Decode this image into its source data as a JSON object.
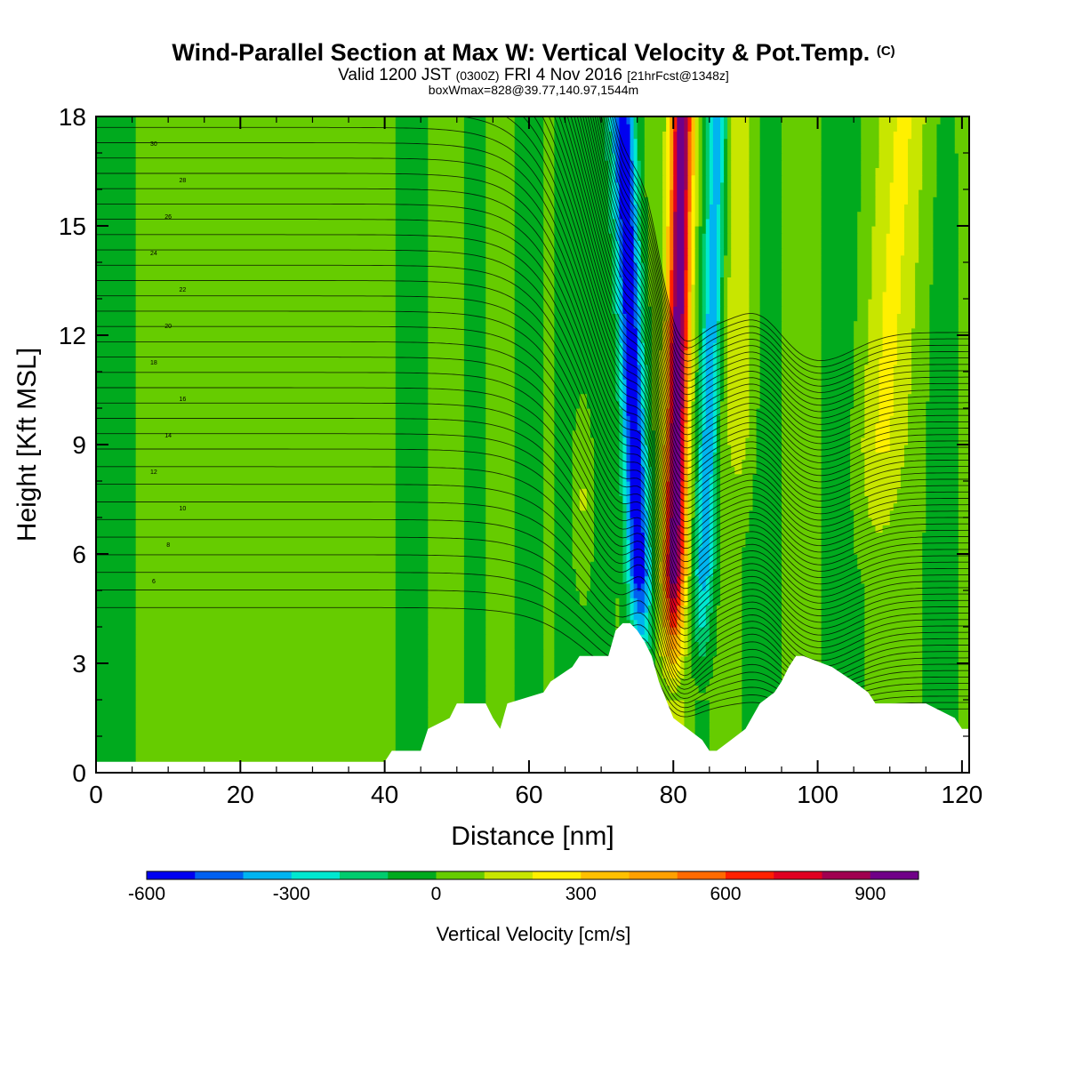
{
  "header": {
    "title_main": "Wind-Parallel Section at Max W: Vertical Velocity & Pot.Temp.",
    "title_mark": "(C)",
    "valid_a": "Valid 1200 JST ",
    "valid_b": "(0300Z)",
    "valid_c": " FRI 4 Nov 2016 ",
    "valid_d": "[21hrFcst@1348z]",
    "info": "boxWmax=828@39.77,140.97,1544m"
  },
  "chart_data": {
    "type": "heatmap",
    "title": "Wind-Parallel Section at Max W: Vertical Velocity & Pot.Temp.",
    "xlabel": "Distance [nm]",
    "ylabel": "Height [Kft MSL]",
    "xlim": [
      0,
      121
    ],
    "ylim": [
      0,
      18
    ],
    "x_ticks": [
      0,
      20,
      40,
      60,
      80,
      100,
      120
    ],
    "y_ticks": [
      0,
      3,
      6,
      9,
      12,
      15,
      18
    ],
    "grid": false,
    "colorbar": {
      "label": "Vertical Velocity [cm/s]",
      "tick_values": [
        -600,
        -300,
        0,
        300,
        600,
        900
      ],
      "tick_labels": [
        "-600",
        "-300",
        "0",
        "300",
        "600",
        "900"
      ],
      "levels": [
        -600,
        -500,
        -400,
        -300,
        -200,
        -100,
        0,
        100,
        200,
        300,
        400,
        500,
        600,
        700,
        800,
        900,
        1000
      ],
      "colors": [
        "#0000f0",
        "#0060f0",
        "#00b4f0",
        "#00e8d0",
        "#00cc6e",
        "#00aa1e",
        "#66cc00",
        "#c8e600",
        "#fff000",
        "#ffc000",
        "#ffa000",
        "#ff6a00",
        "#ff2000",
        "#e00020",
        "#a00050",
        "#700088"
      ]
    },
    "terrain": {
      "x": [
        0,
        40,
        41,
        45,
        46,
        49,
        50,
        54,
        55,
        56,
        57,
        62,
        63,
        66,
        67,
        71,
        72,
        73,
        74,
        75,
        76,
        77,
        78,
        80,
        82,
        84,
        85,
        86,
        88,
        90,
        92,
        94,
        95,
        96,
        97,
        98,
        102,
        105,
        107,
        108,
        111,
        112,
        115,
        119,
        120,
        121
      ],
      "y": [
        0.3,
        0.3,
        0.6,
        0.6,
        1.2,
        1.5,
        1.9,
        1.9,
        1.5,
        1.2,
        1.9,
        2.2,
        2.5,
        2.9,
        3.2,
        3.2,
        3.9,
        4.1,
        4.1,
        3.9,
        3.6,
        3.2,
        2.5,
        1.5,
        1.2,
        0.9,
        0.6,
        0.6,
        0.9,
        1.2,
        1.9,
        2.2,
        2.5,
        2.9,
        3.2,
        3.2,
        2.9,
        2.5,
        2.2,
        1.9,
        1.9,
        1.9,
        1.9,
        1.5,
        1.2,
        1.2
      ]
    },
    "theta_contour_labels": [
      "6",
      "8",
      "10",
      "12",
      "14",
      "16",
      "18",
      "20",
      "22",
      "24",
      "26",
      "28",
      "30"
    ]
  }
}
